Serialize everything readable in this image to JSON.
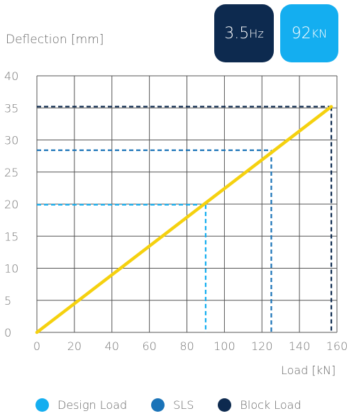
{
  "header": {
    "ylabel": "Deflection [mm]",
    "freq_value": "3.5",
    "freq_unit": "Hz",
    "load_value": "92",
    "load_unit": "KN"
  },
  "chart_data": {
    "type": "line",
    "title": "",
    "xlabel": "Load [kN]",
    "ylabel": "Deflection [mm]",
    "xlim": [
      0,
      160
    ],
    "ylim": [
      0,
      40
    ],
    "xticks": [
      0,
      20,
      40,
      60,
      80,
      100,
      120,
      140,
      160
    ],
    "yticks": [
      0,
      5,
      10,
      15,
      20,
      25,
      30,
      35,
      40
    ],
    "grid": true,
    "series": [
      {
        "x": [
          0,
          157
        ],
        "y": [
          0,
          35.2
        ],
        "color": "#f5d10f"
      }
    ],
    "reference_lines": [
      {
        "name": "Design Load",
        "x": 90,
        "y": 19.9,
        "color": "#14aef0"
      },
      {
        "name": "SLS",
        "x": 125,
        "y": 28.4,
        "color": "#1a73b8"
      },
      {
        "name": "Block Load",
        "x": 157,
        "y": 35.2,
        "color": "#0d2a4f"
      }
    ],
    "legend": [
      {
        "name": "Design Load",
        "color": "#14aef0"
      },
      {
        "name": "SLS",
        "color": "#1a73b8"
      },
      {
        "name": "Block Load",
        "color": "#0d2a4f"
      }
    ],
    "legend_position": "bottom"
  }
}
